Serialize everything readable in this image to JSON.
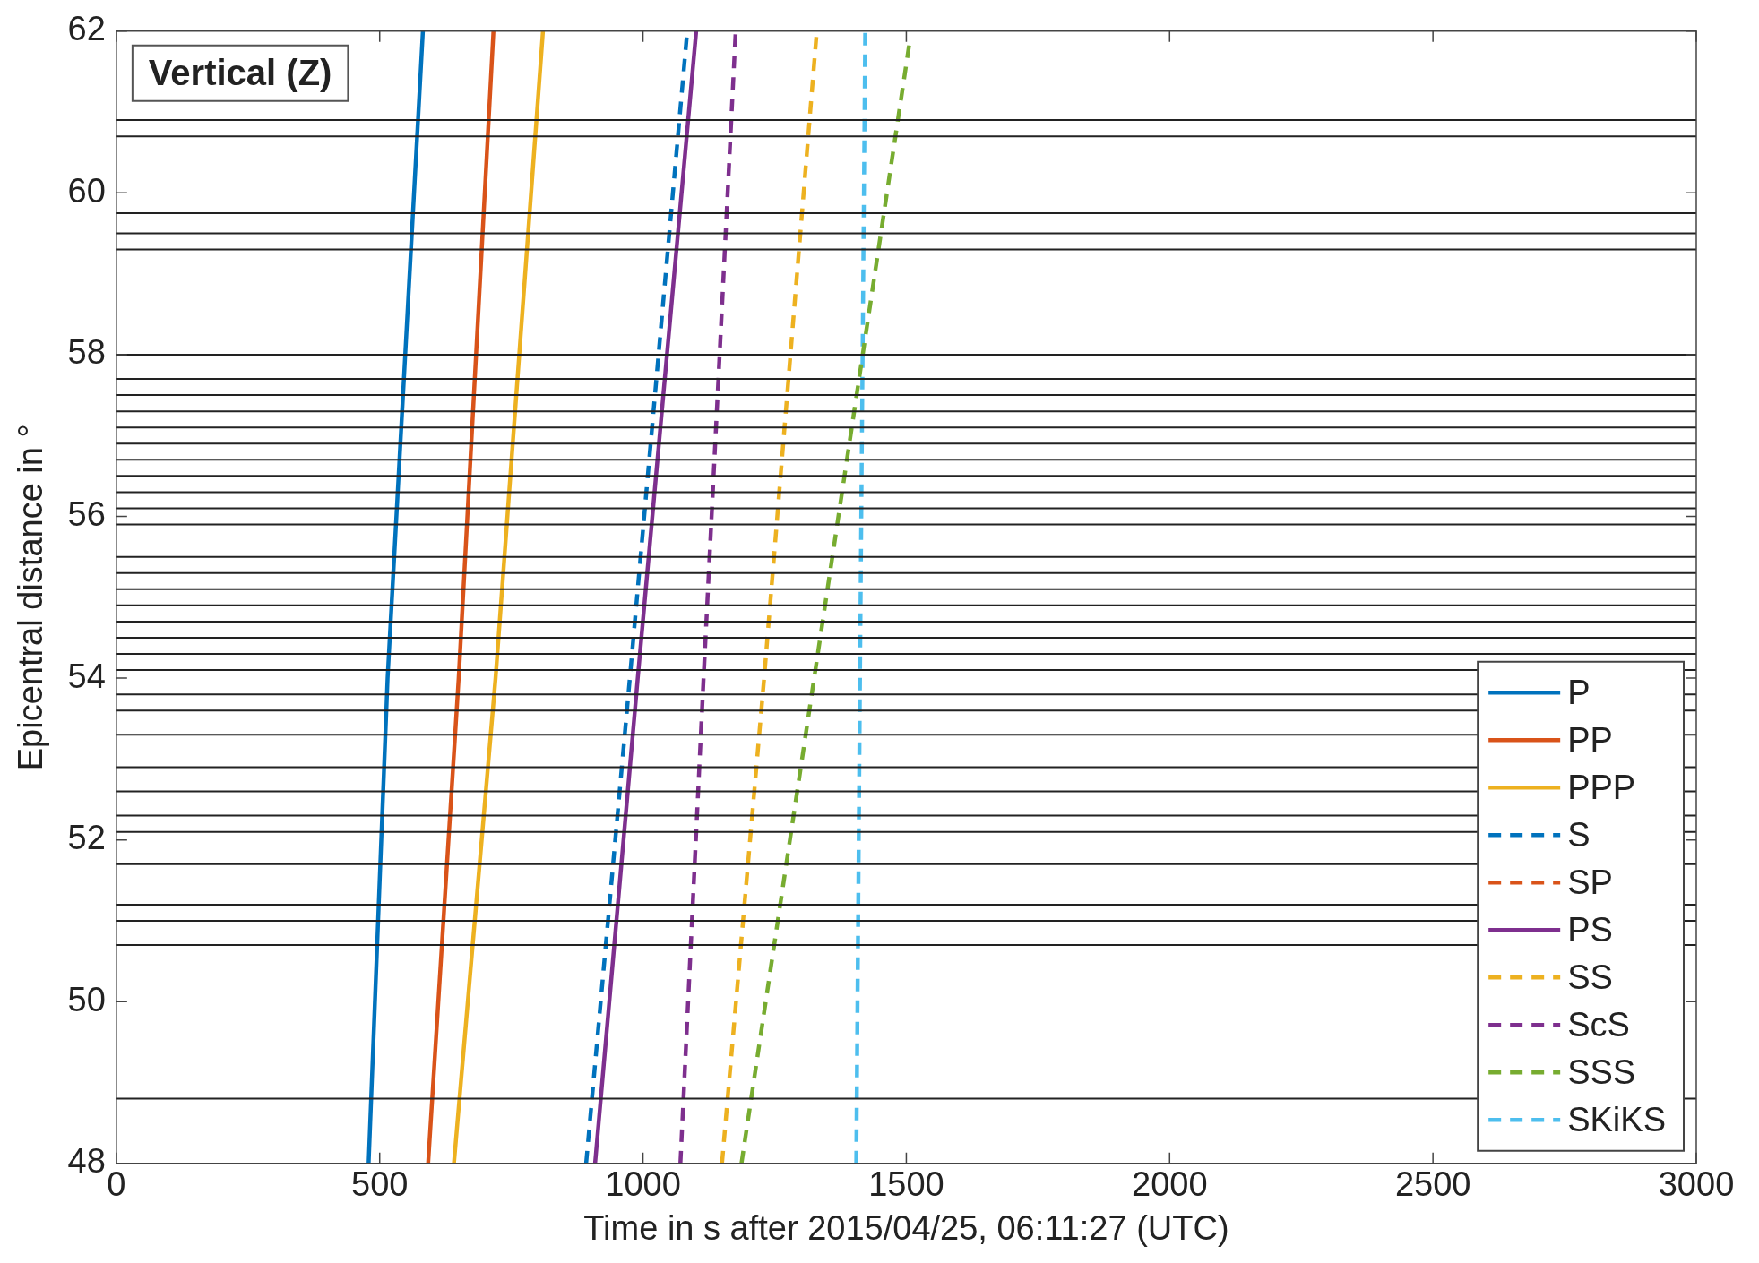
{
  "chart_data": {
    "type": "line",
    "xlabel": "Time in s after 2015/04/25, 06:11:27 (UTC)",
    "ylabel": "Epicentral distance in °",
    "annotations": [
      "Vertical (Z)"
    ],
    "xlim": [
      0,
      3000
    ],
    "xticks": [
      0,
      500,
      1000,
      1500,
      2000,
      2500,
      3000
    ],
    "ylim": [
      48,
      62
    ],
    "yticks": [
      48,
      50,
      52,
      54,
      56,
      58,
      60,
      62
    ],
    "grid": false,
    "legend": "bottom right",
    "marker": "none",
    "series": [
      {
        "color": "#222222",
        "x": [
          0,
          3000
        ],
        "values": [
          60.9,
          60.9
        ]
      },
      {
        "color": "#222222",
        "x": [
          0,
          3000
        ],
        "values": [
          60.7,
          60.7
        ]
      },
      {
        "color": "#222222",
        "x": [
          0,
          3000
        ],
        "values": [
          59.75,
          59.75
        ]
      },
      {
        "color": "#222222",
        "x": [
          0,
          3000
        ],
        "values": [
          59.5,
          59.5
        ]
      },
      {
        "color": "#222222",
        "x": [
          0,
          3000
        ],
        "values": [
          59.3,
          59.3
        ]
      },
      {
        "color": "#222222",
        "x": [
          0,
          3000
        ],
        "values": [
          58.0,
          58.0
        ]
      },
      {
        "color": "#222222",
        "x": [
          0,
          3000
        ],
        "values": [
          57.7,
          57.7
        ]
      },
      {
        "color": "#222222",
        "x": [
          0,
          3000
        ],
        "values": [
          57.5,
          57.5
        ]
      },
      {
        "color": "#222222",
        "x": [
          0,
          3000
        ],
        "values": [
          57.3,
          57.3
        ]
      },
      {
        "color": "#222222",
        "x": [
          0,
          3000
        ],
        "values": [
          57.1,
          57.1
        ]
      },
      {
        "color": "#222222",
        "x": [
          0,
          3000
        ],
        "values": [
          56.9,
          56.9
        ]
      },
      {
        "color": "#222222",
        "x": [
          0,
          3000
        ],
        "values": [
          56.7,
          56.7
        ]
      },
      {
        "color": "#222222",
        "x": [
          0,
          3000
        ],
        "values": [
          56.5,
          56.5
        ]
      },
      {
        "color": "#222222",
        "x": [
          0,
          3000
        ],
        "values": [
          56.3,
          56.3
        ]
      },
      {
        "color": "#222222",
        "x": [
          0,
          3000
        ],
        "values": [
          56.1,
          56.1
        ]
      },
      {
        "color": "#222222",
        "x": [
          0,
          3000
        ],
        "values": [
          55.9,
          55.9
        ]
      },
      {
        "color": "#222222",
        "x": [
          0,
          3000
        ],
        "values": [
          55.5,
          55.5
        ]
      },
      {
        "color": "#222222",
        "x": [
          0,
          3000
        ],
        "values": [
          55.3,
          55.3
        ]
      },
      {
        "color": "#222222",
        "x": [
          0,
          3000
        ],
        "values": [
          55.1,
          55.1
        ]
      },
      {
        "color": "#222222",
        "x": [
          0,
          3000
        ],
        "values": [
          54.9,
          54.9
        ]
      },
      {
        "color": "#222222",
        "x": [
          0,
          3000
        ],
        "values": [
          54.7,
          54.7
        ]
      },
      {
        "color": "#222222",
        "x": [
          0,
          3000
        ],
        "values": [
          54.5,
          54.5
        ]
      },
      {
        "color": "#222222",
        "x": [
          0,
          3000
        ],
        "values": [
          54.3,
          54.3
        ]
      },
      {
        "color": "#222222",
        "x": [
          0,
          3000
        ],
        "values": [
          54.1,
          54.1
        ]
      },
      {
        "color": "#222222",
        "x": [
          0,
          3000
        ],
        "values": [
          53.8,
          53.8
        ]
      },
      {
        "color": "#222222",
        "x": [
          0,
          3000
        ],
        "values": [
          53.6,
          53.6
        ]
      },
      {
        "color": "#222222",
        "x": [
          0,
          3000
        ],
        "values": [
          53.3,
          53.3
        ]
      },
      {
        "color": "#222222",
        "x": [
          0,
          3000
        ],
        "values": [
          52.9,
          52.9
        ]
      },
      {
        "color": "#222222",
        "x": [
          0,
          3000
        ],
        "values": [
          52.6,
          52.6
        ]
      },
      {
        "color": "#222222",
        "x": [
          0,
          3000
        ],
        "values": [
          52.3,
          52.3
        ]
      },
      {
        "color": "#222222",
        "x": [
          0,
          3000
        ],
        "values": [
          52.1,
          52.1
        ]
      },
      {
        "color": "#222222",
        "x": [
          0,
          3000
        ],
        "values": [
          51.7,
          51.7
        ]
      },
      {
        "color": "#222222",
        "x": [
          0,
          3000
        ],
        "values": [
          51.2,
          51.2
        ]
      },
      {
        "color": "#222222",
        "x": [
          0,
          3000
        ],
        "values": [
          51.0,
          51.0
        ]
      },
      {
        "color": "#222222",
        "x": [
          0,
          3000
        ],
        "values": [
          50.7,
          50.7
        ]
      },
      {
        "color": "#222222",
        "x": [
          0,
          3000
        ],
        "values": [
          48.8,
          48.8
        ]
      },
      {
        "name": "P",
        "color": "#0072bd",
        "line_style": "solid",
        "x": [
          479,
          515,
          582
        ],
        "values": [
          48,
          54,
          62
        ]
      },
      {
        "name": "PP",
        "color": "#d95319",
        "line_style": "solid",
        "x": [
          592,
          650,
          716
        ],
        "values": [
          48,
          54,
          62
        ]
      },
      {
        "name": "PPP",
        "color": "#edb120",
        "line_style": "solid",
        "x": [
          641,
          720,
          810
        ],
        "values": [
          48,
          54,
          62
        ]
      },
      {
        "name": "S",
        "color": "#0072bd",
        "line_style": "dashed",
        "x": [
          892,
          975,
          1084
        ],
        "values": [
          48,
          54,
          62
        ]
      },
      {
        "name": "SP",
        "color": "#d95319",
        "line_style": "dashed"
      },
      {
        "name": "PS",
        "color": "#7e2f8e",
        "line_style": "solid",
        "x": [
          909,
          990,
          1101
        ],
        "values": [
          48,
          54,
          62
        ]
      },
      {
        "name": "SS",
        "color": "#edb120",
        "line_style": "dashed",
        "x": [
          1150,
          1230,
          1330
        ],
        "values": [
          48,
          54,
          62
        ]
      },
      {
        "name": "ScS",
        "color": "#7e2f8e",
        "line_style": "dashed",
        "x": [
          1071,
          1115,
          1176
        ],
        "values": [
          48,
          54,
          62
        ]
      },
      {
        "name": "SSS",
        "color": "#77ac30",
        "line_style": "dashed",
        "x": [
          1187,
          1325,
          1507
        ],
        "values": [
          48,
          54,
          61.9
        ]
      },
      {
        "name": "SKiKS",
        "color": "#4dbeee",
        "line_style": "dashed",
        "x": [
          1405,
          1412,
          1422
        ],
        "values": [
          48,
          54,
          62
        ]
      }
    ]
  }
}
